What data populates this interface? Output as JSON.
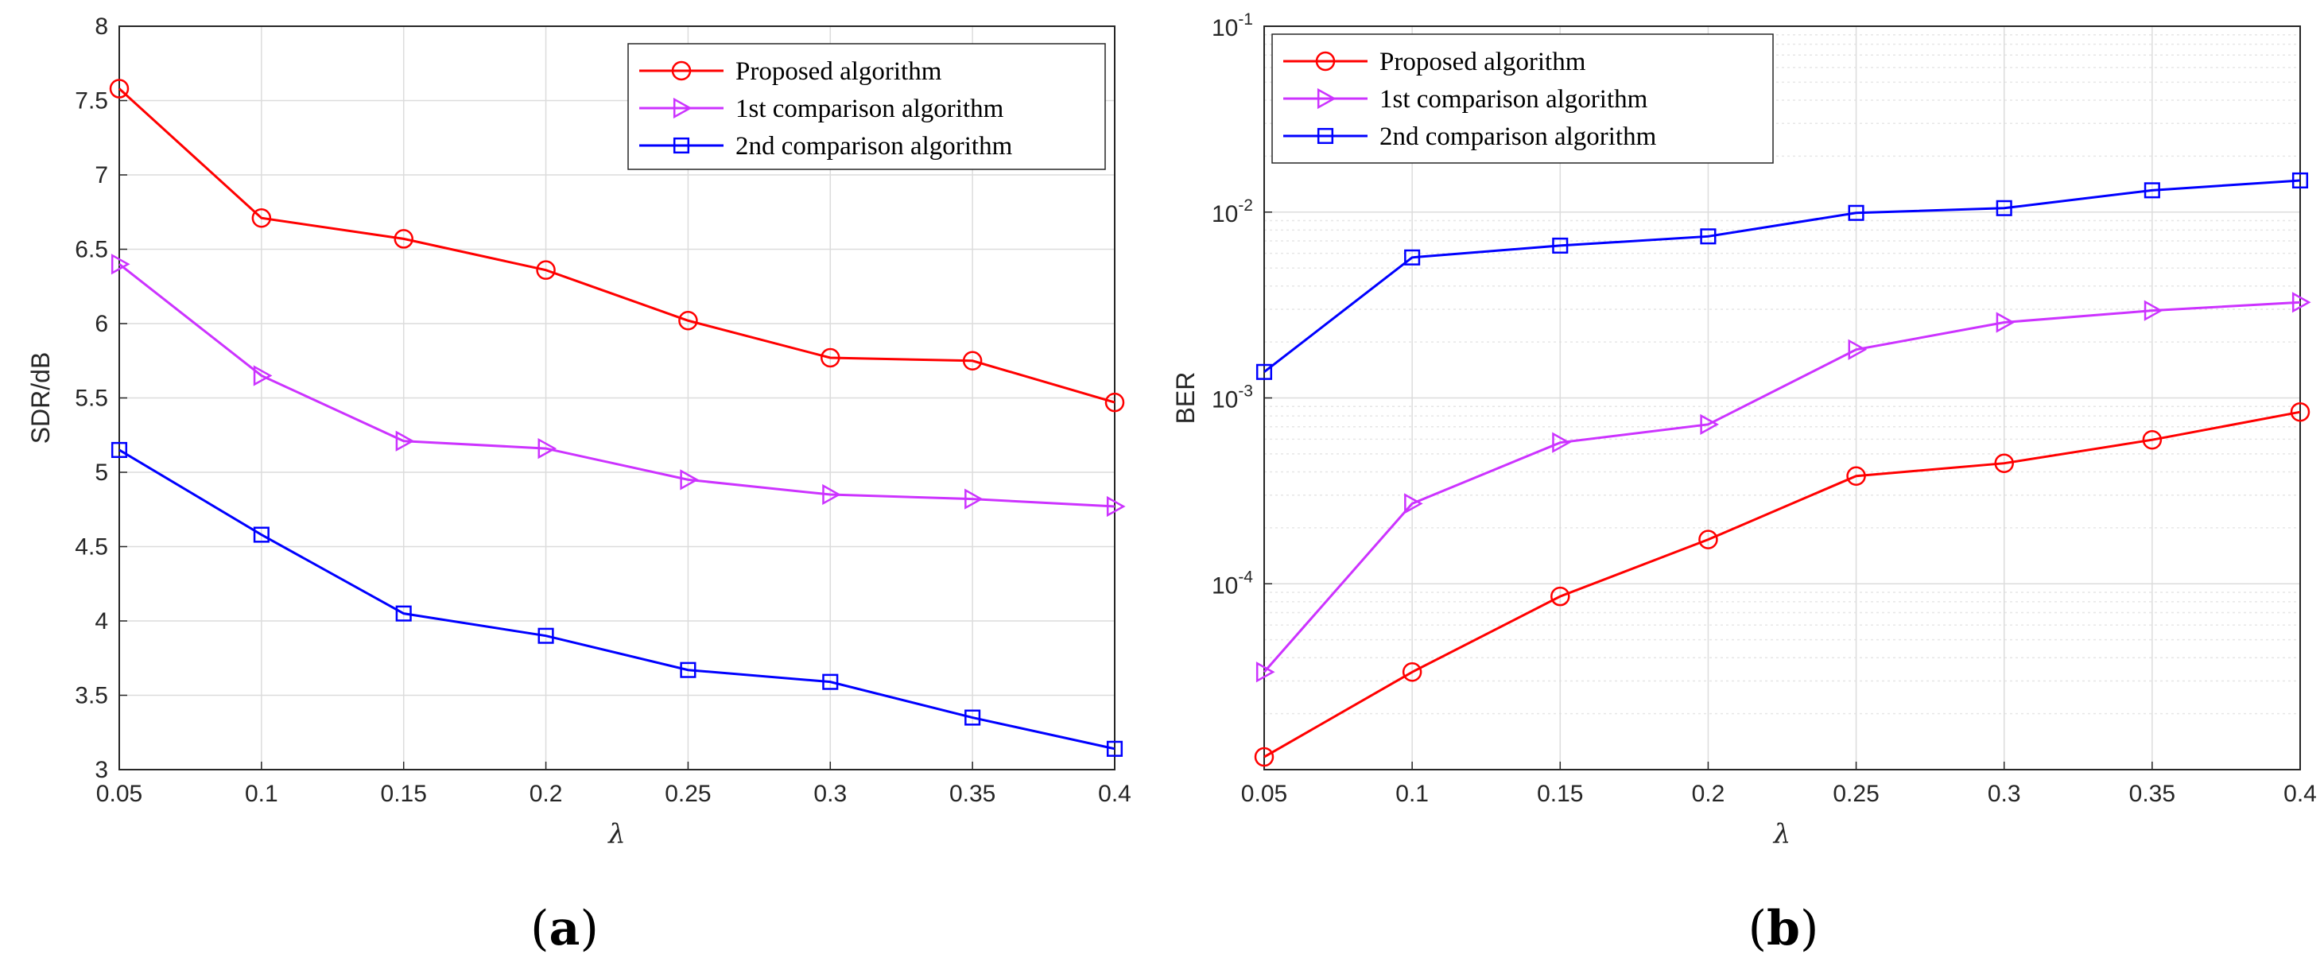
{
  "chart_data": [
    {
      "type": "line",
      "caption": "a",
      "title": "",
      "xlabel": "λ",
      "ylabel": "SDR/dB",
      "yscale": "linear",
      "xlim": [
        0.05,
        0.4
      ],
      "ylim": [
        3,
        8
      ],
      "grid": true,
      "legend_position": "top-right",
      "x": [
        0.05,
        0.1,
        0.15,
        0.2,
        0.25,
        0.3,
        0.35,
        0.4
      ],
      "x_tick_labels": [
        "0.05",
        "0.1",
        "0.15",
        "0.2",
        "0.25",
        "0.3",
        "0.35",
        "0.4"
      ],
      "y_ticks": [
        3,
        3.5,
        4,
        4.5,
        5,
        5.5,
        6,
        6.5,
        7,
        7.5,
        8
      ],
      "y_tick_labels": [
        "3",
        "3.5",
        "4",
        "4.5",
        "5",
        "5.5",
        "6",
        "6.5",
        "7",
        "7.5",
        "8"
      ],
      "series": [
        {
          "name": "Proposed algorithm",
          "color": "#ff0000",
          "marker": "circle",
          "values": [
            7.58,
            6.71,
            6.57,
            6.36,
            6.02,
            5.77,
            5.75,
            5.47
          ]
        },
        {
          "name": "1st comparison algorithm",
          "color": "#cc33ff",
          "marker": "triangle-right",
          "values": [
            6.4,
            5.65,
            5.21,
            5.16,
            4.95,
            4.85,
            4.82,
            4.77
          ]
        },
        {
          "name": "2nd comparison algorithm",
          "color": "#0000ff",
          "marker": "square",
          "values": [
            5.15,
            4.58,
            4.05,
            3.9,
            3.67,
            3.59,
            3.35,
            3.14
          ]
        }
      ]
    },
    {
      "type": "line",
      "caption": "b",
      "title": "",
      "xlabel": "λ",
      "ylabel": "BER",
      "yscale": "log",
      "xlim": [
        0.05,
        0.4
      ],
      "ylim": [
        1e-05,
        0.1
      ],
      "grid": true,
      "legend_position": "top-left",
      "x": [
        0.05,
        0.1,
        0.15,
        0.2,
        0.25,
        0.3,
        0.35,
        0.4
      ],
      "x_tick_labels": [
        "0.05",
        "0.1",
        "0.15",
        "0.2",
        "0.25",
        "0.3",
        "0.35",
        "0.4"
      ],
      "y_ticks": [
        0.0001,
        0.001,
        0.01,
        0.1
      ],
      "y_tick_exponents": [
        "-4",
        "-3",
        "-2",
        "-1"
      ],
      "y_tick_base": "10",
      "series": [
        {
          "name": "Proposed algorithm",
          "color": "#ff0000",
          "marker": "circle",
          "values": [
            1.17e-05,
            3.35e-05,
            8.55e-05,
            0.000173,
            0.00038,
            0.000445,
            0.000595,
            0.00084
          ]
        },
        {
          "name": "1st comparison algorithm",
          "color": "#cc33ff",
          "marker": "triangle-right",
          "values": [
            3.35e-05,
            0.00027,
            0.000575,
            0.00072,
            0.00182,
            0.00255,
            0.00295,
            0.00327
          ]
        },
        {
          "name": "2nd comparison algorithm",
          "color": "#0000ff",
          "marker": "square",
          "values": [
            0.00138,
            0.0057,
            0.0066,
            0.0074,
            0.0099,
            0.0105,
            0.0131,
            0.0148
          ]
        }
      ]
    }
  ]
}
